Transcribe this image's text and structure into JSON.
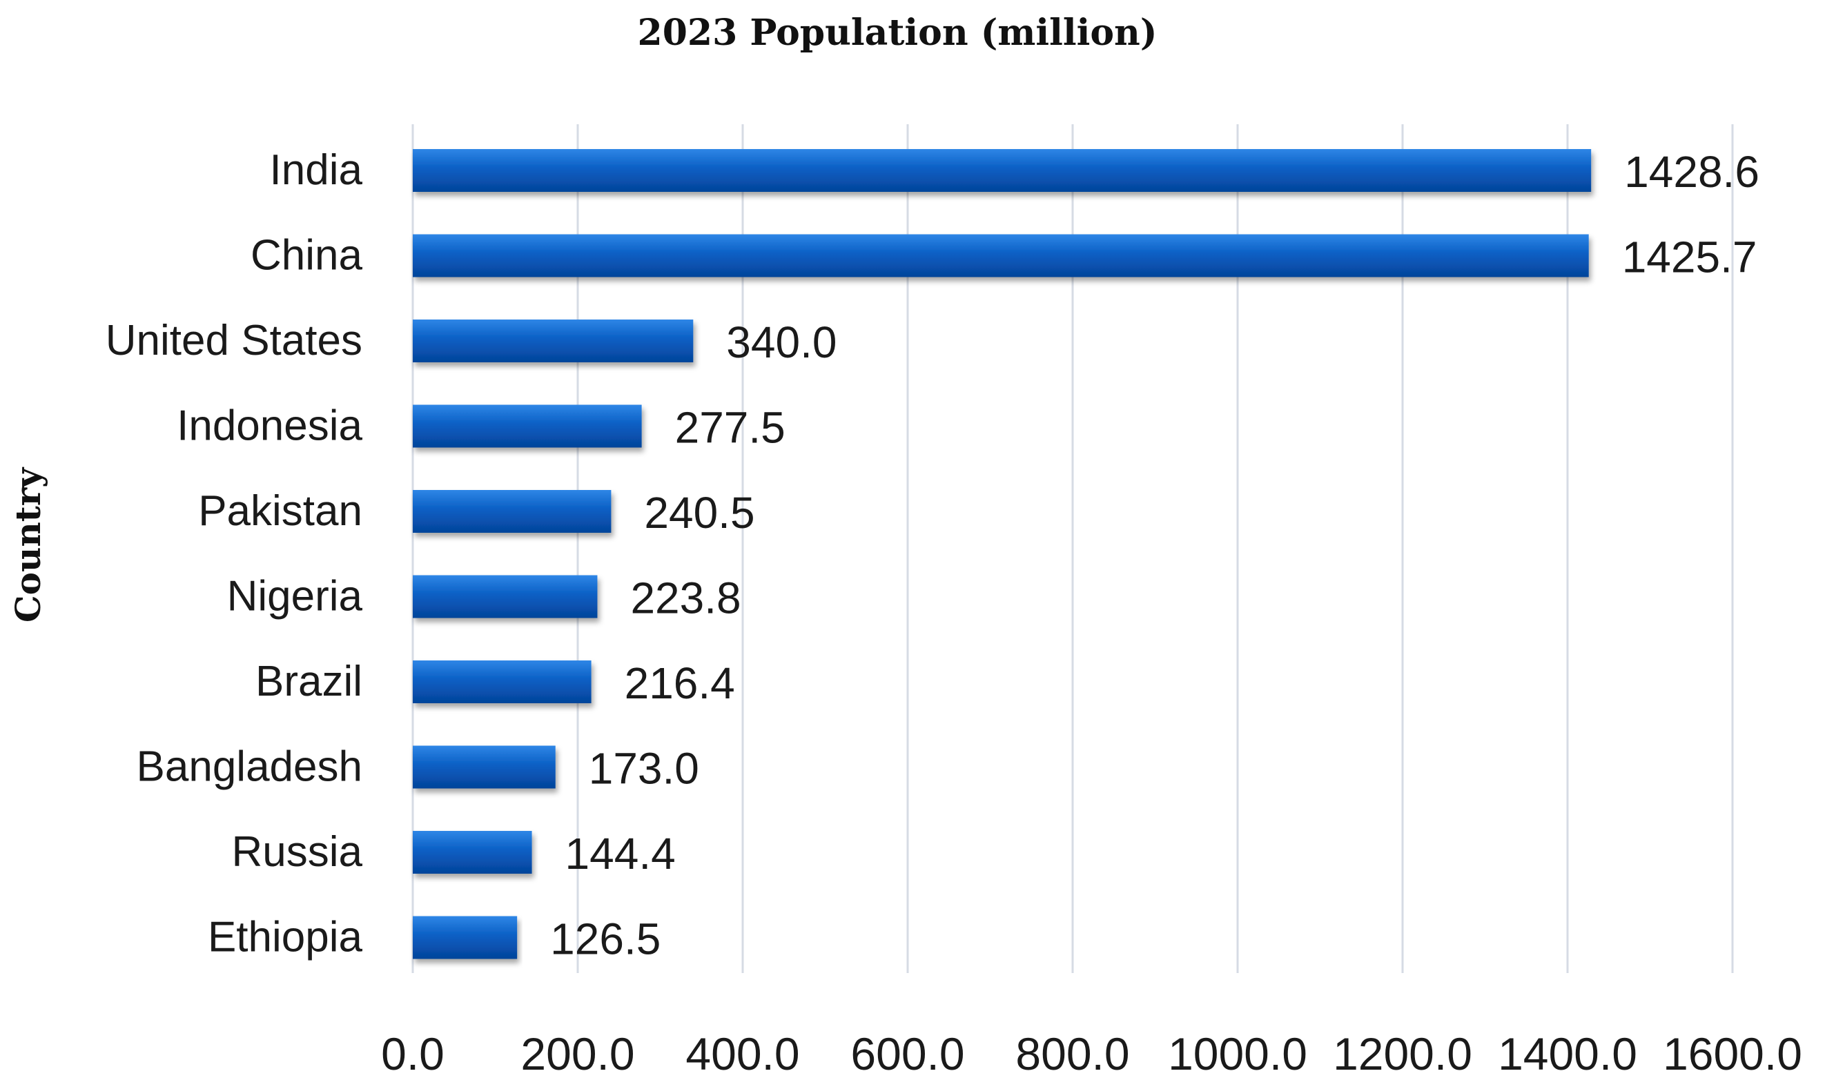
{
  "chart_data": {
    "type": "bar",
    "orientation": "horizontal",
    "title": "2023 Population (million)",
    "xlabel": "",
    "ylabel": "Country",
    "categories": [
      "India",
      "China",
      "United States",
      "Indonesia",
      "Pakistan",
      "Nigeria",
      "Brazil",
      "Bangladesh",
      "Russia",
      "Ethiopia"
    ],
    "values": [
      1428.6,
      1425.7,
      340.0,
      277.5,
      240.5,
      223.8,
      216.4,
      173.0,
      144.4,
      126.5
    ],
    "value_labels": [
      "1428.6",
      "1425.7",
      "340.0",
      "277.5",
      "240.5",
      "223.8",
      "216.4",
      "173.0",
      "144.4",
      "126.5"
    ],
    "xlim": [
      0,
      1600
    ],
    "xticks": [
      0,
      200,
      400,
      600,
      800,
      1000,
      1200,
      1400,
      1600
    ],
    "xtick_labels": [
      "0.0",
      "200.0",
      "400.0",
      "600.0",
      "800.0",
      "1000.0",
      "1200.0",
      "1400.0",
      "1600.0"
    ],
    "grid": true,
    "legend": "none",
    "bar_color": "#0a5fc4"
  }
}
